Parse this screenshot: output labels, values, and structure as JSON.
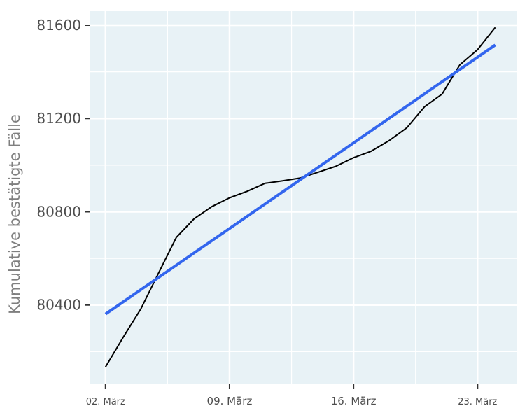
{
  "chart_data": {
    "type": "line",
    "ylabel": "Kumulative bestätigte Fälle",
    "xlabel": "",
    "title": "",
    "x_ticks": [
      {
        "label": "02. März",
        "day": 2
      },
      {
        "label": "09. März",
        "day": 9
      },
      {
        "label": "16. März",
        "day": 16
      },
      {
        "label": "23. März",
        "day": 23
      }
    ],
    "y_ticks": [
      80400,
      80800,
      81200,
      81600
    ],
    "xlim": [
      1.1,
      25.2
    ],
    "ylim": [
      80060,
      81660
    ],
    "grid": true,
    "colors": {
      "panel_background": "#e8f2f6",
      "grid_major": "#ffffff",
      "cases_line": "#000000",
      "trend_line": "#3366ee"
    },
    "series": [
      {
        "values_x": [
          2,
          3,
          4,
          5,
          6,
          7,
          8,
          9,
          10,
          11,
          12,
          13,
          14,
          15,
          16,
          17,
          18,
          19,
          20,
          21,
          22,
          23,
          24
        ],
        "values_y": [
          80134,
          80262,
          80384,
          80538,
          80690,
          80770,
          80822,
          80860,
          80888,
          80922,
          80933,
          80945,
          80970,
          80995,
          81032,
          81060,
          81105,
          81160,
          81250,
          81305,
          81430,
          81495,
          81590
        ]
      },
      {
        "values_x": [
          2,
          24
        ],
        "values_y": [
          80361,
          81515
        ]
      }
    ]
  }
}
